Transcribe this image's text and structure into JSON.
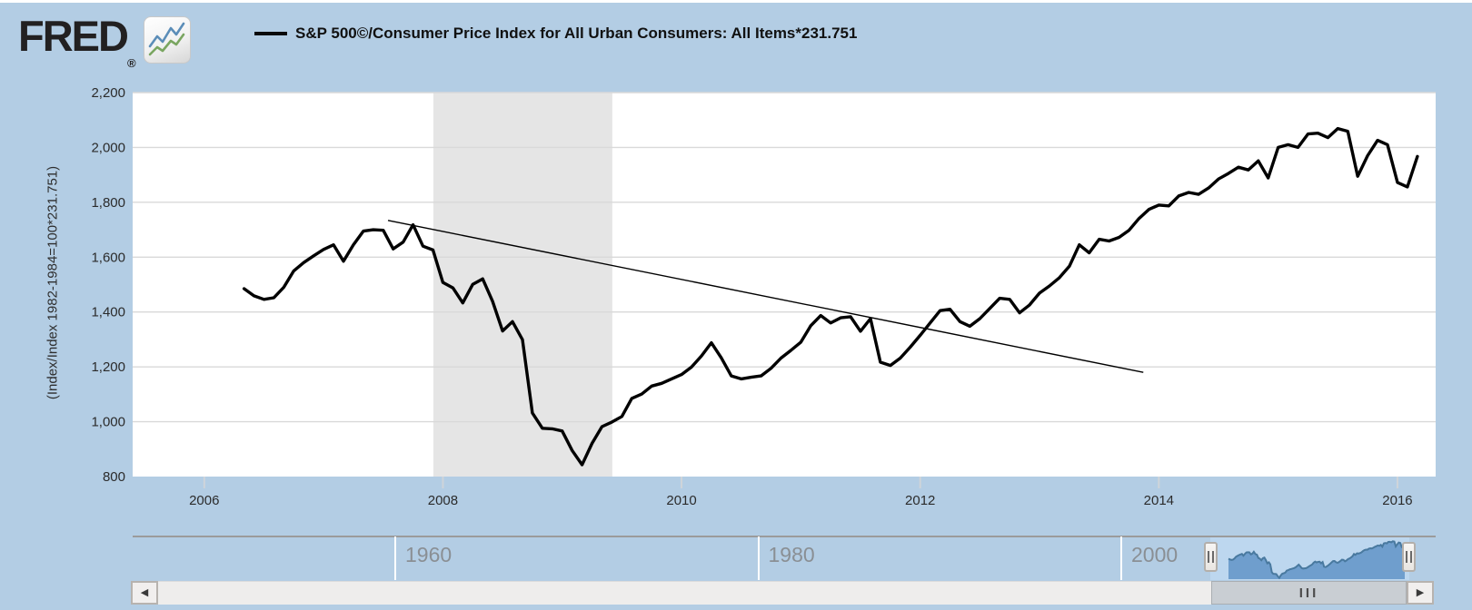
{
  "header": {
    "logo_text": "FRED",
    "registered_mark": "®",
    "logo_icon": "line-chart-icon"
  },
  "legend": {
    "label": "S&P 500©/Consumer Price Index for All Urban Consumers: All Items*231.751"
  },
  "chart_data": {
    "type": "line",
    "title": "S&P 500©/Consumer Price Index for All Urban Consumers: All Items*231.751",
    "ylabel": "(Index/Index 1982-1984=100*231.751)",
    "xlabel": "",
    "x_ticks": [
      2006,
      2008,
      2010,
      2012,
      2014,
      2016
    ],
    "y_ticks": [
      800,
      1000,
      1200,
      1400,
      1600,
      1800,
      2000,
      2200
    ],
    "ylim": [
      800,
      2200
    ],
    "xlim_years": [
      2005.4,
      2016.32
    ],
    "grid": true,
    "legend_position": "top",
    "series": [
      {
        "name": "S&P 500©/Consumer Price Index for All Urban Consumers: All Items*231.751",
        "start": "2006-05",
        "frequency": "monthly",
        "values": [
          1485,
          1459,
          1446,
          1452,
          1490,
          1550,
          1580,
          1605,
          1628,
          1645,
          1585,
          1645,
          1695,
          1700,
          1698,
          1630,
          1655,
          1718,
          1640,
          1626,
          1508,
          1488,
          1433,
          1501,
          1521,
          1439,
          1331,
          1365,
          1299,
          1032,
          976,
          974,
          966,
          895,
          843,
          921,
          982,
          999,
          1019,
          1085,
          1101,
          1130,
          1140,
          1156,
          1172,
          1199,
          1240,
          1288,
          1233,
          1167,
          1156,
          1162,
          1167,
          1195,
          1232,
          1260,
          1290,
          1350,
          1387,
          1360,
          1379,
          1383,
          1330,
          1376,
          1217,
          1205,
          1232,
          1272,
          1315,
          1360,
          1405,
          1410,
          1365,
          1348,
          1376,
          1413,
          1450,
          1446,
          1397,
          1426,
          1469,
          1495,
          1525,
          1567,
          1645,
          1616,
          1665,
          1659,
          1672,
          1698,
          1741,
          1774,
          1790,
          1787,
          1823,
          1836,
          1829,
          1852,
          1885,
          1905,
          1928,
          1918,
          1951,
          1889,
          2000,
          2010,
          2000,
          2049,
          2052,
          2036,
          2069,
          2059,
          1895,
          1970,
          2026,
          2010,
          1872,
          1856,
          1967
        ]
      }
    ],
    "trendline": {
      "from_year": 2007.54,
      "from_value": 1734,
      "to_year": 2013.87,
      "to_value": 1180
    },
    "recession_bands": [
      {
        "from_year": 2007.92,
        "to_year": 2009.42
      }
    ]
  },
  "timeline": {
    "decade_labels": [
      "1960",
      "1980",
      "2000"
    ],
    "decade_years": [
      1960,
      1980,
      2000
    ]
  },
  "scrollbar": {
    "left_arrow": "◀",
    "right_arrow": "▶",
    "grip": "III"
  },
  "colors": {
    "page_background": "#b3cde4",
    "plot_background": "#ffffff",
    "gridline": "#d9d9d9",
    "recession_band": "#e5e5e5",
    "series_line": "#000000",
    "trendline": "#000000",
    "tick_label": "#2b2b2b",
    "decade_label": "#8a8f94",
    "selection_background": "#bdd7ef",
    "minimap_fill": "#6f9ecd",
    "minimap_line": "#49799f",
    "logo_blue": "#5b8db8",
    "logo_green": "#7aa661"
  }
}
